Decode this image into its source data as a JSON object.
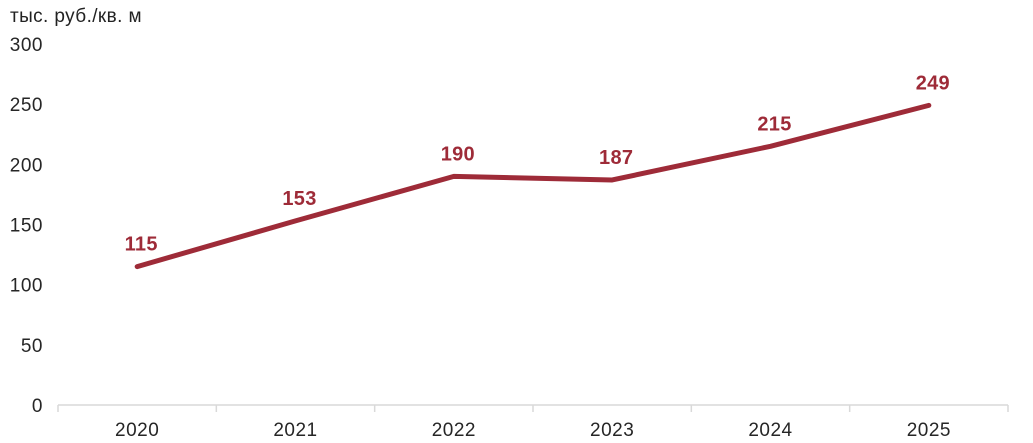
{
  "chart_data": {
    "type": "line",
    "title": "тыс. руб./кв. м",
    "categories": [
      "2020",
      "2021",
      "2022",
      "2023",
      "2024",
      "2025"
    ],
    "series": [
      {
        "name": "price",
        "values": [
          115,
          153,
          190,
          187,
          215,
          249
        ]
      }
    ],
    "data_labels": [
      "115",
      "153",
      "190",
      "187",
      "215",
      "249"
    ],
    "yticks": [
      0,
      50,
      100,
      150,
      200,
      250,
      300
    ],
    "ylim": [
      0,
      300
    ],
    "xlabel": "",
    "ylabel": "тыс. руб./кв. м",
    "grid": false,
    "legend_position": "none",
    "colors": {
      "line": "#9e2b38",
      "data_label": "#9e2b38",
      "axis_line": "#d9d9d9",
      "tick_text": "#262626",
      "background": "#ffffff"
    }
  }
}
